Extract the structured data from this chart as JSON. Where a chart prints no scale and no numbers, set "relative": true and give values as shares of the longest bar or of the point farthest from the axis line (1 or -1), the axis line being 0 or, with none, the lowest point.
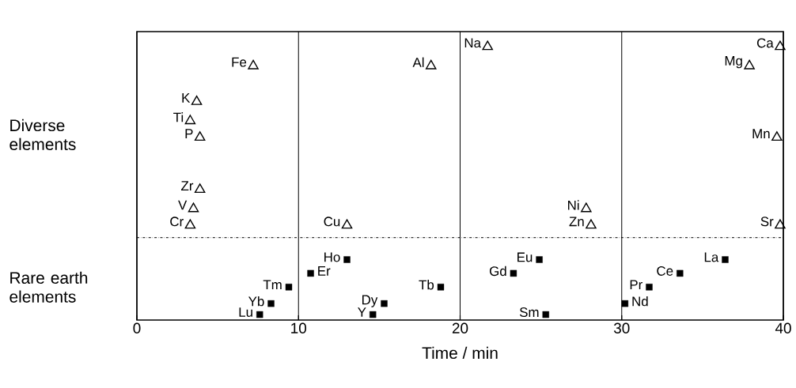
{
  "chart_data": {
    "type": "scatter",
    "xlabel": "Time / min",
    "xlim": [
      0,
      40
    ],
    "xticks": [
      0,
      10,
      20,
      30,
      40
    ],
    "relative": true,
    "grid": "x",
    "tick_labels": "x",
    "series": [
      {
        "color": "#000000",
        "marker": "triangle",
        "x": [
          21.7,
          39.8,
          7.2,
          18.2,
          37.9,
          3.7,
          3.3,
          3.9,
          39.6,
          3.9,
          3.5,
          27.8,
          3.3,
          13.0,
          28.1,
          39.8
        ],
        "values": [
          1,
          1,
          0.93,
          0.93,
          0.93,
          0.8,
          0.73,
          0.67,
          0.67,
          0.48,
          0.41,
          0.41,
          0.35,
          0.35,
          0.35,
          0.35
        ]
      },
      {
        "color": "#000000",
        "marker": "square",
        "x": [
          13.0,
          10.75,
          9.4,
          8.3,
          7.6,
          18.8,
          15.3,
          14.6,
          24.9,
          23.3,
          25.3,
          30.2,
          31.7,
          33.6,
          36.4
        ],
        "values": [
          0.22,
          0.17,
          0.12,
          0.06,
          0.02,
          0.12,
          0.06,
          0.02,
          0.22,
          0.17,
          0.02,
          0.06,
          0.12,
          0.17,
          0.22
        ]
      }
    ],
    "ref_lines": [
      {
        "axis": "y",
        "value": 0.3,
        "line_style": "dashdot"
      }
    ],
    "annotations": [
      "Diverse elements",
      "Rare earth elements",
      {
        "text": "Na",
        "x": 21.7,
        "y": 1
      },
      {
        "text": "Ca",
        "x": 39.8,
        "y": 1
      },
      {
        "text": "Fe",
        "x": 7.2,
        "y": 0.93
      },
      {
        "text": "Al",
        "x": 18.2,
        "y": 0.93
      },
      {
        "text": "Mg",
        "x": 37.9,
        "y": 0.93
      },
      {
        "text": "K",
        "x": 3.7,
        "y": 0.8
      },
      {
        "text": "Ti",
        "x": 3.3,
        "y": 0.73
      },
      {
        "text": "P",
        "x": 3.9,
        "y": 0.67
      },
      {
        "text": "Mn",
        "x": 39.6,
        "y": 0.67
      },
      {
        "text": "Zr",
        "x": 3.9,
        "y": 0.48
      },
      {
        "text": "V",
        "x": 3.5,
        "y": 0.41
      },
      {
        "text": "Ni",
        "x": 27.8,
        "y": 0.41
      },
      {
        "text": "Cr",
        "x": 3.3,
        "y": 0.35
      },
      {
        "text": "Cu",
        "x": 13.0,
        "y": 0.35
      },
      {
        "text": "Zn",
        "x": 28.1,
        "y": 0.35
      },
      {
        "text": "Sr",
        "x": 39.8,
        "y": 0.35
      },
      {
        "text": "Ho",
        "x": 13.0,
        "y": 0.22
      },
      {
        "text": "Er",
        "x": 10.75,
        "y": 0.17
      },
      {
        "text": "Tm",
        "x": 9.4,
        "y": 0.12
      },
      {
        "text": "Yb",
        "x": 8.3,
        "y": 0.06
      },
      {
        "text": "Lu",
        "x": 7.6,
        "y": 0.02
      },
      {
        "text": "Tb",
        "x": 18.8,
        "y": 0.12
      },
      {
        "text": "Dy",
        "x": 15.3,
        "y": 0.06
      },
      {
        "text": "Y",
        "x": 14.6,
        "y": 0.02
      },
      {
        "text": "Eu",
        "x": 24.9,
        "y": 0.22
      },
      {
        "text": "Gd",
        "x": 23.3,
        "y": 0.17
      },
      {
        "text": "Sm",
        "x": 25.3,
        "y": 0.02
      },
      {
        "text": "Nd",
        "x": 30.2,
        "y": 0.06
      },
      {
        "text": "Pr",
        "x": 31.7,
        "y": 0.12
      },
      {
        "text": "Ce",
        "x": 33.6,
        "y": 0.17
      },
      {
        "text": "La",
        "x": 36.4,
        "y": 0.22
      }
    ]
  }
}
